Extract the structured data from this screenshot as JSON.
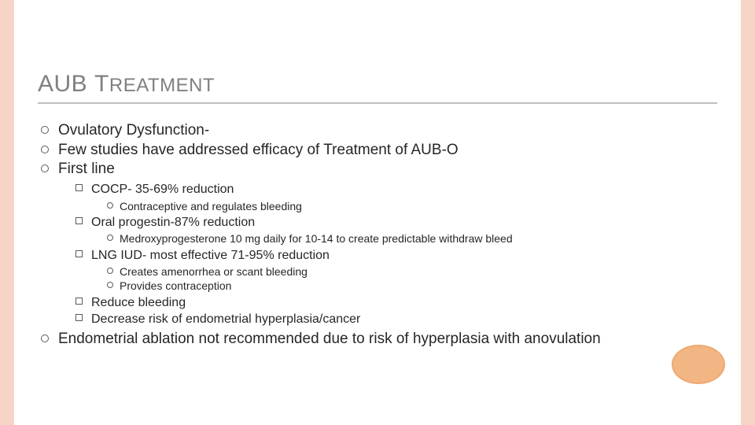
{
  "colors": {
    "border_stripe": "#f6d4c6",
    "title_text": "#808080",
    "title_rule": "#bfbfbf",
    "body_text": "#262626",
    "bullet_outline": "#5b5b5b",
    "ellipse_fill": "#f2b584",
    "ellipse_stroke": "#efa96f",
    "background": "#ffffff"
  },
  "title": {
    "part1": "AUB ",
    "part2_smallcaps": "Treatment"
  },
  "bullets": [
    {
      "text": "Ovulatory Dysfunction-"
    },
    {
      "text": "Few studies have addressed efficacy of Treatment of AUB-O"
    },
    {
      "text": "First line",
      "children": [
        {
          "text": "COCP- 35-69% reduction",
          "children": [
            {
              "text": "Contraceptive and regulates bleeding"
            }
          ]
        },
        {
          "text": "Oral progestin-87% reduction",
          "children": [
            {
              "text": "Medroxyprogesterone 10 mg daily for 10-14 to create predictable withdraw bleed"
            }
          ]
        },
        {
          "text": "LNG IUD- most effective 71-95% reduction",
          "children": [
            {
              "text": "Creates amenorrhea or scant bleeding"
            },
            {
              "text": "Provides contraception"
            }
          ]
        },
        {
          "text": "Reduce bleeding"
        },
        {
          "text": "Decrease risk of endometrial hyperplasia/cancer"
        }
      ]
    },
    {
      "text": "Endometrial ablation not recommended due to risk of hyperplasia with anovulation"
    }
  ]
}
